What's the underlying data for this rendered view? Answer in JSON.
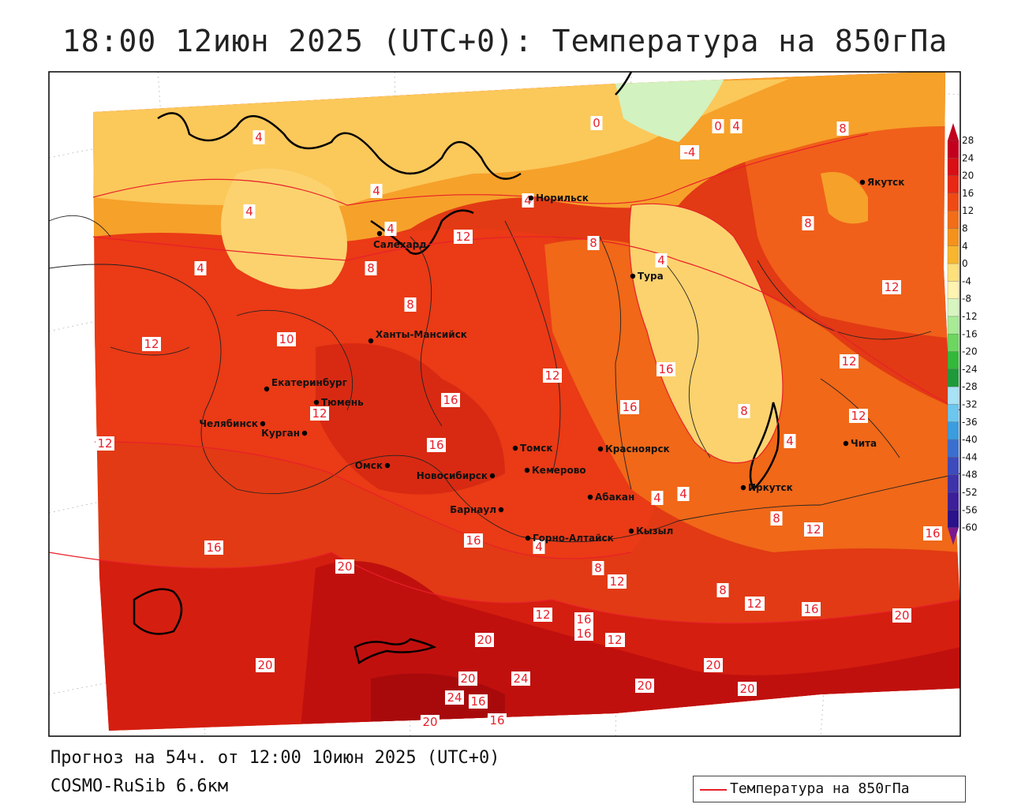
{
  "title": "18:00 12июн 2025 (UTC+0): Температура на 850гПа",
  "forecast_info": "Прогноз на 54ч. от 12:00 10июн 2025 (UTC+0)",
  "model_info": "COSMO-RuSib 6.6км",
  "legend": {
    "label": "Температура на 850гПа",
    "line_color": "#e8202a"
  },
  "color_scale": {
    "labels": [
      "28",
      "24",
      "20",
      "16",
      "12",
      "8",
      "4",
      "0",
      "-4",
      "-8",
      "-12",
      "-16",
      "-20",
      "-24",
      "-28",
      "-32",
      "-36",
      "-40",
      "-44",
      "-48",
      "-52",
      "-56",
      "-60"
    ],
    "colors": [
      "#c2001e",
      "#d80f14",
      "#e82814",
      "#f04a14",
      "#f26d18",
      "#f4921c",
      "#f8b62e",
      "#fde07a",
      "#fff3b0",
      "#d8f5c0",
      "#a7eb95",
      "#6cd65e",
      "#34b839",
      "#1f9a3a",
      "#a8e2f5",
      "#6cc6ee",
      "#3b9cde",
      "#3b6fcf",
      "#3d4bbc",
      "#3f33a9",
      "#3c1f99",
      "#2a128a",
      "#7a1a8e"
    ]
  },
  "cities": [
    {
      "name": "Якутск"
    },
    {
      "name": "Норильск"
    },
    {
      "name": "Салехард"
    },
    {
      "name": "Тура"
    },
    {
      "name": "Ханты-Мансийск"
    },
    {
      "name": "Екатеринбург"
    },
    {
      "name": "Тюмень"
    },
    {
      "name": "Челябинск"
    },
    {
      "name": "Курган"
    },
    {
      "name": "Омск"
    },
    {
      "name": "Новосибирск"
    },
    {
      "name": "Томск"
    },
    {
      "name": "Красноярск"
    },
    {
      "name": "Кемерово"
    },
    {
      "name": "Барнаул"
    },
    {
      "name": "Абакан"
    },
    {
      "name": "Иркутск"
    },
    {
      "name": "Чита"
    },
    {
      "name": "Горно-Алтайск"
    },
    {
      "name": "Кызыл"
    }
  ],
  "contour_labels": [
    "4",
    "4",
    "0",
    "0",
    "4",
    "8",
    "-4",
    "4",
    "4",
    "4",
    "8",
    "12",
    "4",
    "8",
    "8",
    "4",
    "12",
    "8",
    "12",
    "10",
    "12",
    "12",
    "12",
    "12",
    "16",
    "12",
    "16",
    "16",
    "16",
    "8",
    "4",
    "4",
    "4",
    "8",
    "16",
    "16",
    "16",
    "8",
    "4",
    "8",
    "8",
    "12",
    "16",
    "12",
    "16",
    "12",
    "20",
    "12",
    "20",
    "16",
    "12",
    "12",
    "8",
    "12",
    "16",
    "20",
    "20",
    "20",
    "24",
    "20",
    "20",
    "24",
    "16",
    "16",
    "20",
    "20",
    "20"
  ]
}
